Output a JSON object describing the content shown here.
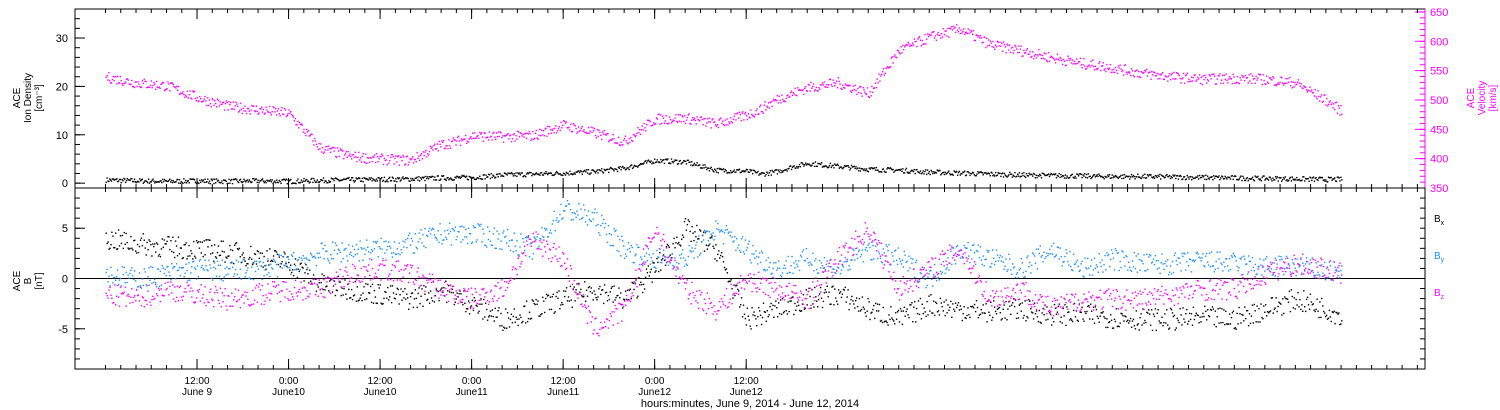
{
  "chart_data": [
    {
      "type": "scatter",
      "panel": "top",
      "ylabel_left": [
        "ACE",
        "Ion Density",
        "[cm⁻³]"
      ],
      "ylabel_right": [
        "ACE",
        "Velocity",
        "[km/s]"
      ],
      "ylim_left": [
        -1,
        36
      ],
      "ylim_right": [
        350,
        655
      ],
      "yticks_left": [
        "0",
        "10",
        "20",
        "30"
      ],
      "yticks_right": [
        "350",
        "400",
        "450",
        "500",
        "550",
        "600",
        "650"
      ],
      "grid": false,
      "series": [
        {
          "axis": "left",
          "color": "#000000",
          "x": [
            0,
            4,
            8,
            12,
            16,
            20,
            24,
            28,
            32,
            36,
            40,
            44,
            48,
            52,
            56,
            60,
            64,
            68,
            72,
            76,
            80,
            84,
            86,
            88,
            90,
            92,
            96,
            100,
            104,
            108,
            112,
            116,
            120,
            124,
            128,
            132,
            136,
            140,
            144,
            148,
            152,
            156,
            160,
            162
          ],
          "y": [
            0.8,
            0.6,
            0.5,
            0.6,
            0.5,
            0.6,
            0.5,
            0.7,
            0.8,
            0.9,
            1,
            1.2,
            1.3,
            1.8,
            2,
            2.2,
            2.5,
            3.2,
            4.8,
            4.5,
            2.8,
            2.6,
            2,
            2.5,
            3.5,
            4.2,
            3.6,
            3.0,
            2.8,
            2.4,
            2.2,
            2.0,
            1.8,
            1.7,
            1.6,
            1.5,
            1.5,
            1.4,
            1.3,
            1.2,
            1.1,
            1.0,
            0.9,
            0.9
          ]
        },
        {
          "axis": "right",
          "color": "#ff00ff",
          "x": [
            0,
            4,
            8,
            12,
            16,
            20,
            24,
            28,
            30,
            32,
            36,
            40,
            44,
            46,
            48,
            52,
            56,
            60,
            64,
            68,
            72,
            76,
            80,
            84,
            86,
            88,
            92,
            96,
            100,
            104,
            108,
            112,
            116,
            120,
            124,
            128,
            132,
            136,
            140,
            144,
            148,
            152,
            156,
            160,
            162
          ],
          "y": [
            540,
            530,
            525,
            505,
            490,
            484,
            478,
            420,
            412,
            405,
            400,
            398,
            425,
            430,
            440,
            438,
            440,
            458,
            445,
            430,
            468,
            470,
            460,
            475,
            486,
            502,
            522,
            530,
            512,
            585,
            608,
            622,
            595,
            585,
            573,
            563,
            556,
            546,
            540,
            536,
            538,
            536,
            530,
            500,
            482
          ]
        }
      ]
    },
    {
      "type": "scatter",
      "panel": "bottom",
      "ylabel_left": [
        "ACE",
        "B",
        "[nT]"
      ],
      "ylim": [
        -9,
        9
      ],
      "yticks": [
        "-5",
        "0",
        "5"
      ],
      "legend_position": "right",
      "grid": false,
      "series": [
        {
          "name": "Bx",
          "color": "#000000",
          "x": [
            0,
            4,
            8,
            12,
            16,
            20,
            24,
            28,
            32,
            36,
            40,
            44,
            48,
            52,
            56,
            60,
            64,
            68,
            72,
            76,
            80,
            84,
            88,
            92,
            96,
            100,
            104,
            108,
            112,
            116,
            120,
            124,
            128,
            132,
            136,
            140,
            144,
            148,
            152,
            156,
            160,
            162
          ],
          "y": [
            4,
            3.5,
            3.2,
            3,
            2.7,
            2.2,
            1.7,
            -0.5,
            -1,
            -1.5,
            -2,
            -1,
            -2.5,
            -4,
            -3,
            -2,
            -1,
            -2,
            1,
            5,
            3,
            -4,
            -3,
            -2,
            -1.5,
            -3,
            -4,
            -2.5,
            -3,
            -3.2,
            -3,
            -3.5,
            -3.5,
            -3.8,
            -4,
            -4,
            -3.8,
            -4,
            -3,
            -2,
            -3,
            -3.6
          ]
        },
        {
          "name": "By",
          "color": "#1e90ff",
          "x": [
            0,
            4,
            8,
            12,
            16,
            20,
            24,
            28,
            32,
            36,
            40,
            44,
            48,
            52,
            56,
            60,
            64,
            68,
            72,
            76,
            80,
            84,
            88,
            92,
            96,
            100,
            104,
            108,
            112,
            116,
            120,
            124,
            128,
            132,
            136,
            140,
            144,
            148,
            152,
            156,
            160,
            162
          ],
          "y": [
            0.5,
            0,
            0.5,
            1,
            0.8,
            1,
            1.5,
            2.5,
            2.8,
            3,
            3.5,
            4.5,
            4.5,
            4,
            3,
            7,
            6,
            3,
            2,
            2,
            5,
            3,
            1,
            2,
            1,
            3,
            2,
            0,
            3,
            2,
            1,
            3,
            1,
            2,
            1.5,
            1.5,
            1.8,
            1.5,
            1.2,
            1.3,
            0.8,
            0.5
          ]
        },
        {
          "name": "Bz",
          "color": "#ff00ff",
          "x": [
            0,
            4,
            8,
            12,
            16,
            20,
            24,
            28,
            32,
            36,
            40,
            44,
            48,
            52,
            56,
            60,
            64,
            68,
            72,
            76,
            80,
            84,
            88,
            92,
            96,
            100,
            104,
            108,
            112,
            116,
            120,
            124,
            128,
            132,
            136,
            140,
            144,
            148,
            152,
            156,
            160,
            162
          ],
          "y": [
            -1.5,
            -2,
            -1,
            -1.5,
            -2,
            -1.5,
            -1,
            -1,
            0.5,
            1,
            0.5,
            -1,
            -2,
            -1,
            4,
            2,
            -5,
            -3,
            5,
            -1,
            -3,
            0,
            -1,
            -2,
            2,
            5,
            -1,
            1,
            3,
            -2,
            -1,
            -3,
            -2,
            -2,
            -2,
            -1.5,
            -1,
            -1,
            0.5,
            1.5,
            1,
            0.5
          ]
        }
      ],
      "legend": [
        {
          "base": "B",
          "sub": "x",
          "color": "#000000"
        },
        {
          "base": "B",
          "sub": "y",
          "color": "#1e90ff"
        },
        {
          "base": "B",
          "sub": "z",
          "color": "#ff00ff"
        }
      ]
    }
  ],
  "x_axis": {
    "xlim_hours": [
      -4,
      173
    ],
    "ticks": [
      {
        "hour": 12,
        "time": "12:00",
        "date": "June 9"
      },
      {
        "hour": 24,
        "time": "0:00",
        "date": "June10"
      },
      {
        "hour": 36,
        "time": "12:00",
        "date": "June10"
      },
      {
        "hour": 48,
        "time": "0:00",
        "date": "June11"
      },
      {
        "hour": 60,
        "time": "12:00",
        "date": "June11"
      },
      {
        "hour": 72,
        "time": "0:00",
        "date": "June12"
      },
      {
        "hour": 84,
        "time": "12:00",
        "date": "June12"
      }
    ],
    "label": "hours:minutes, June  9, 2014 - June 12, 2014"
  }
}
